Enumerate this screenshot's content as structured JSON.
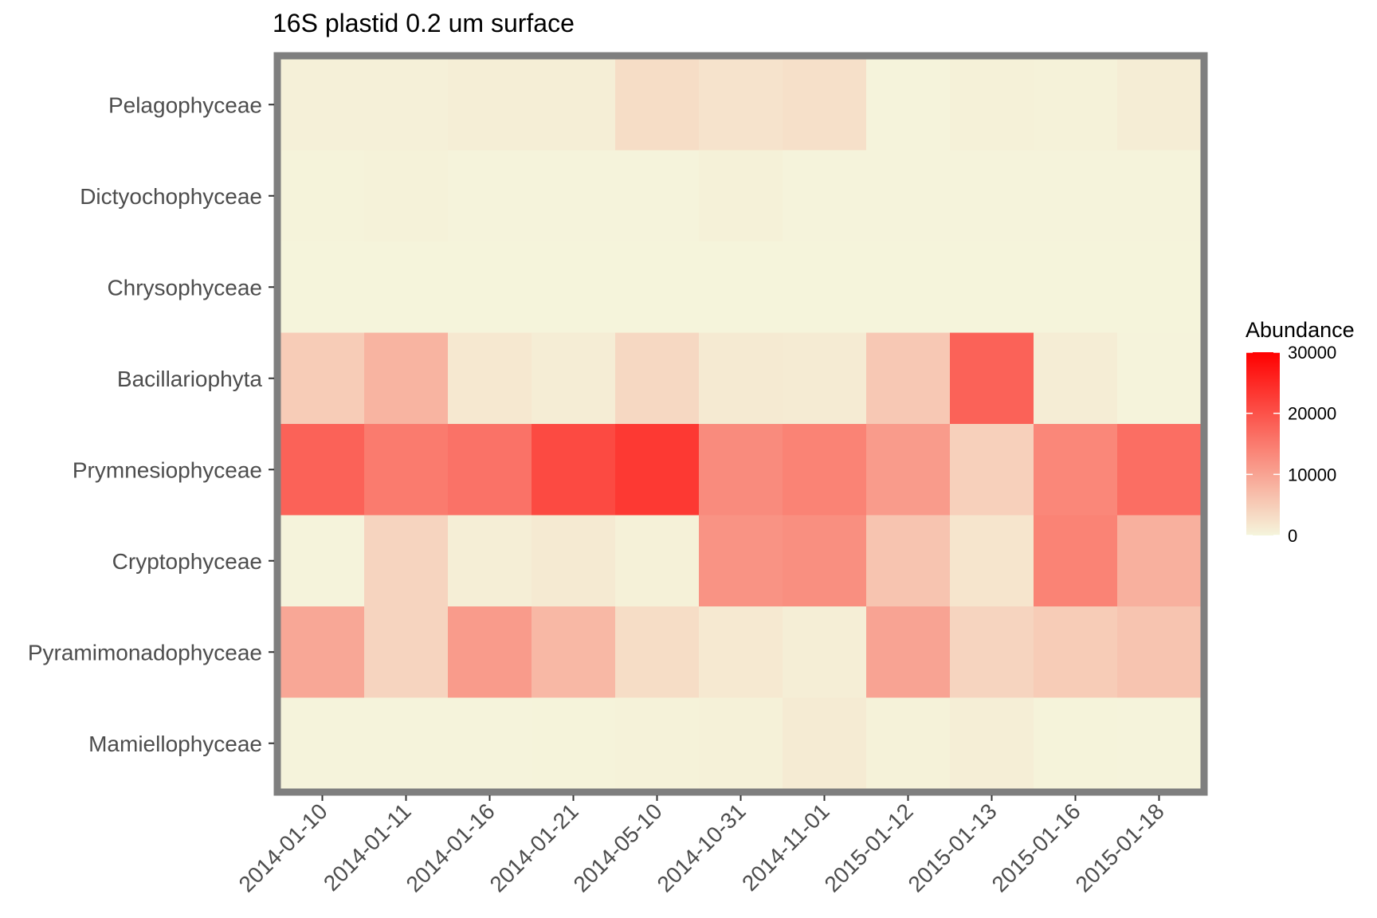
{
  "chart_data": {
    "type": "heatmap",
    "title": "16S plastid 0.2 um surface",
    "x_categories": [
      "2014-01-10",
      "2014-01-11",
      "2014-01-16",
      "2014-01-21",
      "2014-05-10",
      "2014-10-31",
      "2014-11-01",
      "2015-01-12",
      "2015-01-13",
      "2015-01-16",
      "2015-01-18"
    ],
    "y_categories": [
      "Pelagophyceae",
      "Dictyochophyceae",
      "Chrysophyceae",
      "Bacillariophyta",
      "Prymnesiophyceae",
      "Cryptophyceae",
      "Pyramimonadophyceae",
      "Mamiellophyceae"
    ],
    "values": [
      [
        600,
        600,
        800,
        800,
        3000,
        2200,
        2600,
        200,
        500,
        400,
        1000
      ],
      [
        300,
        400,
        200,
        200,
        200,
        500,
        200,
        200,
        200,
        200,
        200
      ],
      [
        100,
        100,
        100,
        100,
        100,
        100,
        100,
        100,
        100,
        100,
        100
      ],
      [
        5000,
        8000,
        1600,
        1000,
        3500,
        1400,
        1200,
        5500,
        18000,
        1000,
        200
      ],
      [
        18000,
        15000,
        16000,
        21000,
        23000,
        13000,
        14000,
        11000,
        4500,
        13500,
        16500
      ],
      [
        200,
        4000,
        800,
        1400,
        500,
        12000,
        12500,
        6000,
        2000,
        14000,
        8500
      ],
      [
        9500,
        4000,
        11000,
        7500,
        3000,
        1500,
        800,
        10000,
        4000,
        5000,
        6000
      ],
      [
        200,
        200,
        200,
        300,
        400,
        500,
        1200,
        400,
        800,
        300,
        200
      ]
    ],
    "color_scale": {
      "name": "Abundance",
      "min": 0,
      "max": 30000,
      "low_color": "#f5f5dc",
      "high_color": "#ff0000",
      "breaks": [
        0,
        10000,
        20000,
        30000
      ],
      "break_labels": [
        "0",
        "10000",
        "20000",
        "30000"
      ]
    },
    "legend_placement": "right",
    "grid": false
  },
  "colors": {
    "panel_border": "#7f7f7f",
    "axis_text": "#4d4d4d",
    "tick": "#333333"
  }
}
